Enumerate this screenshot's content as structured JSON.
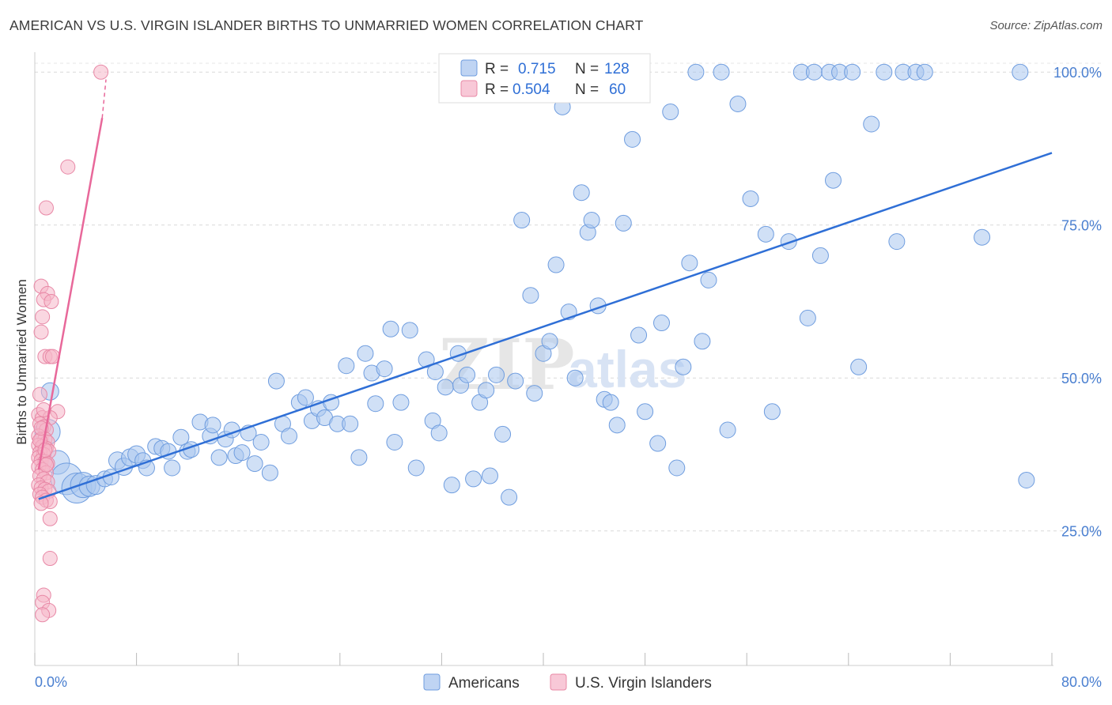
{
  "title": "AMERICAN VS U.S. VIRGIN ISLANDER BIRTHS TO UNMARRIED WOMEN CORRELATION CHART",
  "source": "Source: ZipAtlas.com",
  "watermark": {
    "zip": "ZIP",
    "atlas": "atlas"
  },
  "chart_data": {
    "type": "scatter",
    "title": "AMERICAN VS U.S. VIRGIN ISLANDER BIRTHS TO UNMARRIED WOMEN CORRELATION CHART",
    "xlabel": "",
    "ylabel": "Births to Unmarried Women",
    "xlim": [
      0,
      80
    ],
    "ylim": [
      3,
      103
    ],
    "x_tick_labels": {
      "min": "0.0%",
      "max": "80.0%"
    },
    "y_ticks": [
      {
        "value": 25,
        "label": "25.0%"
      },
      {
        "value": 50,
        "label": "50.0%"
      },
      {
        "value": 75,
        "label": "75.0%"
      },
      {
        "value": 100,
        "label": "100.0%"
      }
    ],
    "grid": true,
    "legend_top": {
      "rows": [
        {
          "r_label": "R =",
          "r": "0.715",
          "n_label": "N =",
          "n": "128",
          "color": "#a9c6ef"
        },
        {
          "r_label": "R =",
          "r": "0.504",
          "n_label": "N =",
          "n": "60",
          "color": "#f6b6c9"
        }
      ]
    },
    "series": [
      {
        "name": "Americans",
        "color": "#a9c6ef",
        "stroke": "#6f9ddf",
        "trend_color": "#2f6fd6",
        "trend": {
          "x1": 0.3,
          "y1": 30.2,
          "x2": 80,
          "y2": 86.8
        },
        "points": [
          [
            1.2,
            47.8,
            11
          ],
          [
            1.0,
            41.2,
            16
          ],
          [
            1.8,
            36.2,
            15
          ],
          [
            2.5,
            33.5,
            20
          ],
          [
            3.3,
            32.0,
            19
          ],
          [
            3.8,
            32.5,
            16
          ],
          [
            4.3,
            32.3,
            13
          ],
          [
            4.8,
            32.5,
            12
          ],
          [
            5.5,
            33.5,
            10
          ],
          [
            6.0,
            33.8,
            10
          ],
          [
            6.5,
            36.5,
            11
          ],
          [
            7.0,
            35.5,
            11
          ],
          [
            7.5,
            37.0,
            11
          ],
          [
            8.0,
            37.5,
            11
          ],
          [
            8.5,
            36.5,
            10
          ],
          [
            8.8,
            35.3,
            10
          ],
          [
            9.5,
            38.8,
            10
          ],
          [
            10.0,
            38.5,
            10
          ],
          [
            10.5,
            38.0,
            10
          ],
          [
            10.8,
            35.3,
            10
          ],
          [
            11.5,
            40.3,
            10
          ],
          [
            12.0,
            38.0,
            10
          ],
          [
            12.3,
            38.3,
            10
          ],
          [
            13.0,
            42.8,
            10
          ],
          [
            13.8,
            40.5,
            10
          ],
          [
            14.0,
            42.3,
            10
          ],
          [
            14.5,
            37.0,
            10
          ],
          [
            15.0,
            40.0,
            10
          ],
          [
            15.5,
            41.5,
            10
          ],
          [
            15.8,
            37.3,
            10
          ],
          [
            16.3,
            37.8,
            10
          ],
          [
            16.8,
            41.0,
            10
          ],
          [
            17.3,
            36.0,
            10
          ],
          [
            17.8,
            39.5,
            10
          ],
          [
            18.5,
            34.5,
            10
          ],
          [
            19.0,
            49.5,
            10
          ],
          [
            19.5,
            42.5,
            10
          ],
          [
            20.0,
            40.5,
            10
          ],
          [
            20.8,
            46.0,
            10
          ],
          [
            21.3,
            46.8,
            10
          ],
          [
            21.8,
            43.0,
            10
          ],
          [
            22.3,
            45.0,
            10
          ],
          [
            22.8,
            43.5,
            10
          ],
          [
            23.3,
            46.0,
            10
          ],
          [
            23.8,
            42.5,
            10
          ],
          [
            24.5,
            52.0,
            10
          ],
          [
            24.8,
            42.5,
            10
          ],
          [
            25.5,
            37.0,
            10
          ],
          [
            26.0,
            54.0,
            10
          ],
          [
            26.5,
            50.8,
            10
          ],
          [
            26.8,
            45.8,
            10
          ],
          [
            27.5,
            51.5,
            10
          ],
          [
            28.0,
            58.0,
            10
          ],
          [
            28.3,
            39.5,
            10
          ],
          [
            28.8,
            46.0,
            10
          ],
          [
            29.5,
            57.8,
            10
          ],
          [
            30.0,
            35.3,
            10
          ],
          [
            30.8,
            53.0,
            10
          ],
          [
            31.3,
            43.0,
            10
          ],
          [
            31.5,
            51.0,
            10
          ],
          [
            31.8,
            41.0,
            10
          ],
          [
            32.3,
            48.5,
            10
          ],
          [
            32.8,
            32.5,
            10
          ],
          [
            33.3,
            54.0,
            10
          ],
          [
            33.5,
            48.8,
            10
          ],
          [
            34.0,
            50.5,
            10
          ],
          [
            34.5,
            33.5,
            10
          ],
          [
            35.0,
            46.0,
            10
          ],
          [
            35.5,
            48.0,
            10
          ],
          [
            35.8,
            34.0,
            10
          ],
          [
            36.3,
            50.5,
            10
          ],
          [
            36.8,
            40.8,
            10
          ],
          [
            37.3,
            30.5,
            10
          ],
          [
            37.8,
            49.5,
            10
          ],
          [
            38.3,
            75.8,
            10
          ],
          [
            39.0,
            63.5,
            10
          ],
          [
            39.3,
            47.5,
            10
          ],
          [
            40.0,
            54.0,
            10
          ],
          [
            40.5,
            56.0,
            10
          ],
          [
            41.0,
            68.5,
            10
          ],
          [
            41.5,
            94.3,
            10
          ],
          [
            42.0,
            60.8,
            10
          ],
          [
            42.5,
            50.0,
            10
          ],
          [
            43.0,
            80.3,
            10
          ],
          [
            43.5,
            73.8,
            10
          ],
          [
            43.8,
            75.8,
            10
          ],
          [
            44.3,
            61.8,
            10
          ],
          [
            44.8,
            46.5,
            10
          ],
          [
            45.3,
            46.0,
            10
          ],
          [
            45.8,
            42.3,
            10
          ],
          [
            46.3,
            75.3,
            10
          ],
          [
            47.0,
            89.0,
            10
          ],
          [
            47.5,
            57.0,
            10
          ],
          [
            48.0,
            44.5,
            10
          ],
          [
            49.0,
            39.3,
            10
          ],
          [
            49.3,
            59.0,
            10
          ],
          [
            50.0,
            93.5,
            10
          ],
          [
            50.5,
            35.3,
            10
          ],
          [
            51.0,
            51.8,
            10
          ],
          [
            51.5,
            68.8,
            10
          ],
          [
            52.0,
            100.0,
            10
          ],
          [
            52.5,
            56.0,
            10
          ],
          [
            53.0,
            66.0,
            10
          ],
          [
            54.0,
            100.0,
            10
          ],
          [
            54.5,
            41.5,
            10
          ],
          [
            55.3,
            94.8,
            10
          ],
          [
            56.3,
            79.3,
            10
          ],
          [
            57.5,
            73.5,
            10
          ],
          [
            58.0,
            44.5,
            10
          ],
          [
            59.3,
            72.3,
            10
          ],
          [
            60.3,
            100.0,
            10
          ],
          [
            60.8,
            59.8,
            10
          ],
          [
            61.3,
            100.0,
            10
          ],
          [
            61.8,
            70.0,
            10
          ],
          [
            62.5,
            100.0,
            10
          ],
          [
            62.8,
            82.3,
            10
          ],
          [
            63.3,
            100.0,
            10
          ],
          [
            64.3,
            100.0,
            10
          ],
          [
            64.8,
            51.8,
            10
          ],
          [
            65.8,
            91.5,
            10
          ],
          [
            66.8,
            100.0,
            10
          ],
          [
            67.8,
            72.3,
            10
          ],
          [
            68.3,
            100.0,
            10
          ],
          [
            69.3,
            100.0,
            10
          ],
          [
            70.0,
            100.0,
            10
          ],
          [
            74.5,
            73.0,
            10
          ],
          [
            77.5,
            100.0,
            10
          ],
          [
            78.0,
            33.3,
            10
          ]
        ]
      },
      {
        "name": "U.S. Virgin Islanders",
        "color": "#f6b6c9",
        "stroke": "#e888a6",
        "trend_color": "#e8689a",
        "trend": {
          "x1": 0.3,
          "y1": 35.0,
          "x2": 5.3,
          "y2": 92.5
        },
        "trend_dash": {
          "x1": 5.3,
          "y1": 92.5,
          "x2": 5.6,
          "y2": 98.8
        },
        "points": [
          [
            5.2,
            100.0,
            9
          ],
          [
            2.6,
            84.5,
            9
          ],
          [
            0.9,
            77.8,
            9
          ],
          [
            0.5,
            65.0,
            9
          ],
          [
            1.0,
            63.8,
            9
          ],
          [
            0.7,
            62.8,
            9
          ],
          [
            1.3,
            62.5,
            9
          ],
          [
            0.6,
            60.0,
            9
          ],
          [
            0.5,
            57.5,
            9
          ],
          [
            0.8,
            53.5,
            9
          ],
          [
            1.2,
            53.5,
            9
          ],
          [
            1.4,
            53.5,
            9
          ],
          [
            0.4,
            47.3,
            9
          ],
          [
            1.8,
            44.5,
            9
          ],
          [
            0.3,
            44.0,
            9
          ],
          [
            0.6,
            43.5,
            9
          ],
          [
            1.2,
            43.5,
            9
          ],
          [
            0.4,
            42.5,
            9
          ],
          [
            0.7,
            42.0,
            9
          ],
          [
            0.9,
            41.5,
            9
          ],
          [
            0.3,
            40.5,
            9
          ],
          [
            0.5,
            40.0,
            9
          ],
          [
            0.8,
            40.0,
            9
          ],
          [
            1.0,
            39.5,
            9
          ],
          [
            0.3,
            39.0,
            9
          ],
          [
            0.6,
            38.8,
            9
          ],
          [
            0.9,
            38.5,
            9
          ],
          [
            1.1,
            38.0,
            9
          ],
          [
            0.4,
            37.8,
            9
          ],
          [
            0.7,
            37.5,
            9
          ],
          [
            0.3,
            37.0,
            9
          ],
          [
            0.5,
            36.5,
            9
          ],
          [
            0.8,
            36.3,
            9
          ],
          [
            1.0,
            36.0,
            9
          ],
          [
            0.3,
            35.5,
            9
          ],
          [
            0.6,
            35.0,
            9
          ],
          [
            0.9,
            34.5,
            9
          ],
          [
            0.4,
            34.0,
            9
          ],
          [
            0.7,
            33.5,
            9
          ],
          [
            1.0,
            33.0,
            9
          ],
          [
            0.3,
            32.5,
            9
          ],
          [
            0.5,
            32.0,
            9
          ],
          [
            0.8,
            31.8,
            9
          ],
          [
            1.1,
            31.5,
            9
          ],
          [
            0.4,
            31.0,
            9
          ],
          [
            0.6,
            30.5,
            9
          ],
          [
            0.9,
            30.0,
            9
          ],
          [
            1.2,
            29.8,
            9
          ],
          [
            0.5,
            29.5,
            9
          ],
          [
            1.2,
            27.0,
            9
          ],
          [
            1.2,
            20.5,
            9
          ],
          [
            0.7,
            14.5,
            9
          ],
          [
            0.6,
            13.3,
            9
          ],
          [
            1.1,
            12.0,
            9
          ],
          [
            0.6,
            11.3,
            9
          ],
          [
            0.4,
            39.8,
            9
          ],
          [
            0.7,
            44.8,
            9
          ],
          [
            0.9,
            35.8,
            9
          ],
          [
            0.5,
            41.8,
            9
          ],
          [
            0.8,
            38.2,
            9
          ]
        ]
      }
    ]
  }
}
